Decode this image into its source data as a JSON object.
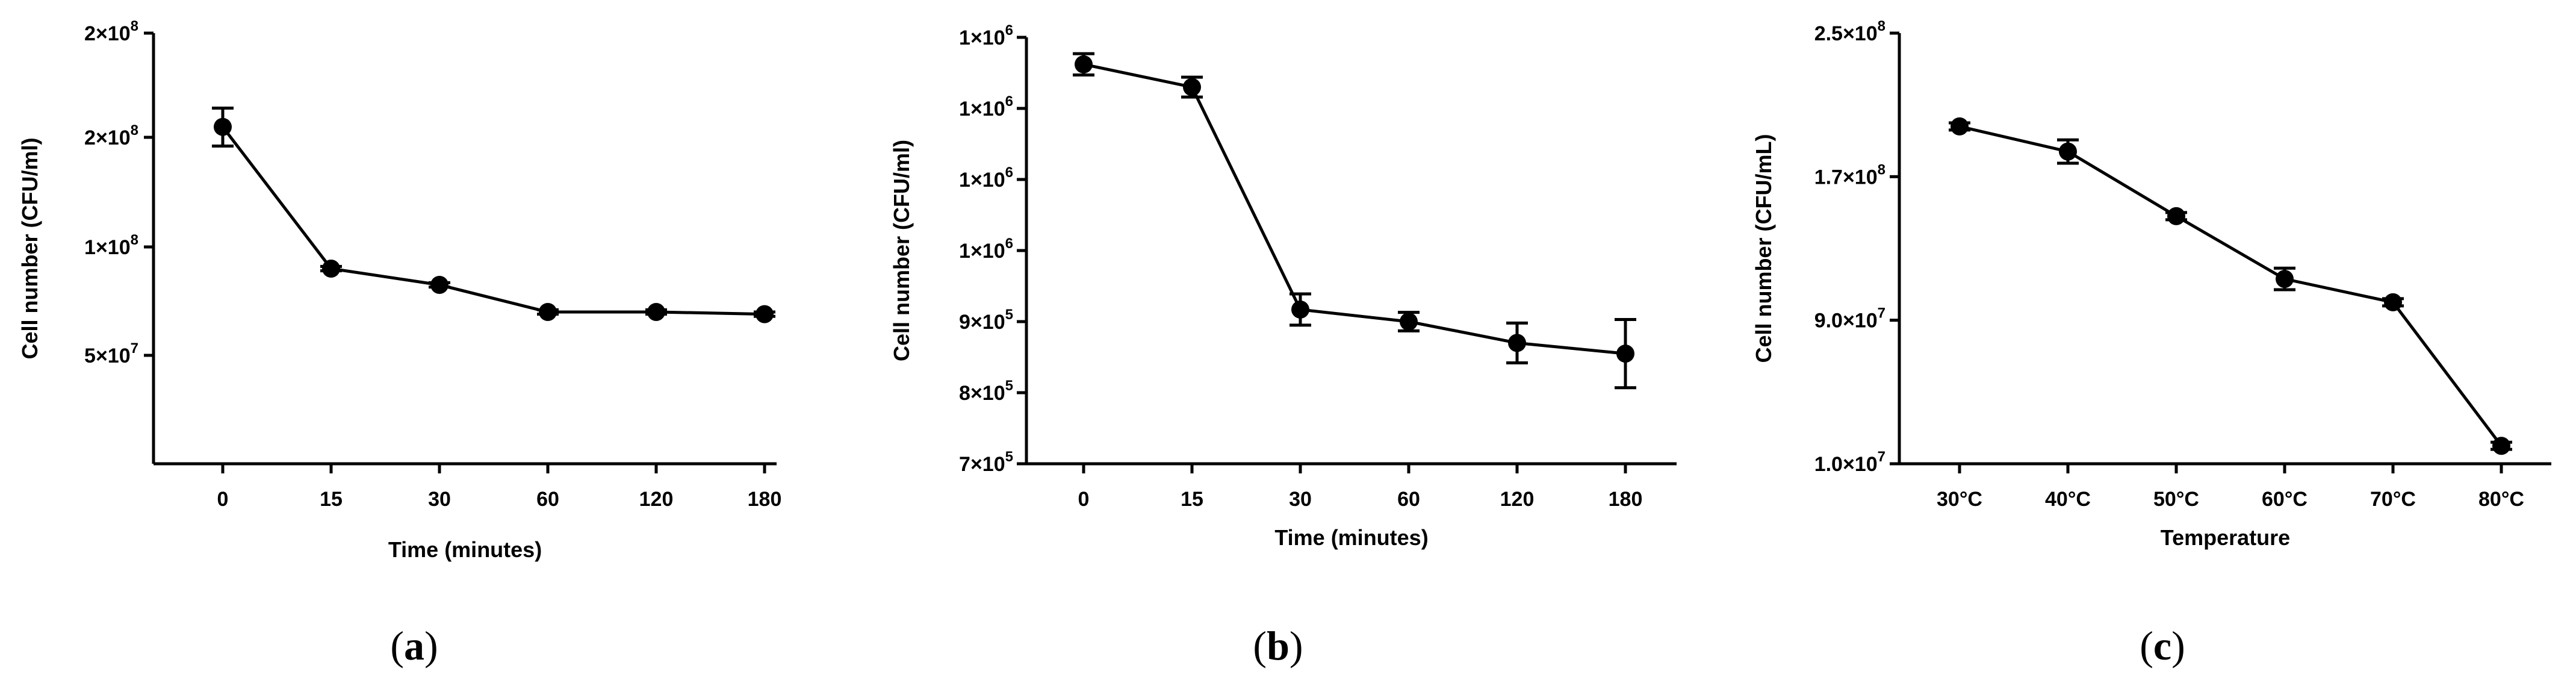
{
  "chart_data": [
    {
      "type": "line",
      "panel_label": "a",
      "xlabel": "Time (minutes)",
      "ylabel": "Cell number (CFU/ml)",
      "categories": [
        "0",
        "15",
        "30",
        "60",
        "120",
        "180"
      ],
      "y_ticks": [
        {
          "value": 50000000,
          "label": "5×10",
          "exp": "7"
        },
        {
          "value": 100000000,
          "label": "1×10",
          "exp": "8"
        },
        {
          "value": 150000000,
          "label": "2×10",
          "exp": "8"
        },
        {
          "value": 200000000,
          "label": "2×10",
          "exp": "8"
        }
      ],
      "ylim": [
        0,
        200000000
      ],
      "series": [
        {
          "name": "series",
          "values": [
            155000000,
            90000000,
            82500000,
            70000000,
            70000000,
            69000000
          ],
          "errors": [
            9000000,
            1000000,
            1000000,
            1000000,
            1000000,
            1000000
          ]
        }
      ]
    },
    {
      "type": "line",
      "panel_label": "b",
      "xlabel": "Time (minutes)",
      "ylabel": "Cell number (CFU/ml)",
      "categories": [
        "0",
        "15",
        "30",
        "60",
        "120",
        "180"
      ],
      "y_ticks": [
        {
          "value": 700000,
          "label": "7×10",
          "exp": "5"
        },
        {
          "value": 800000,
          "label": "8×10",
          "exp": "5"
        },
        {
          "value": 900000,
          "label": "9×10",
          "exp": "5"
        },
        {
          "value": 1000000,
          "label": "1×10",
          "exp": "6"
        },
        {
          "value": 1100000,
          "label": "1×10",
          "exp": "6"
        },
        {
          "value": 1200000,
          "label": "1×10",
          "exp": "6"
        },
        {
          "value": 1300000,
          "label": "1×10",
          "exp": "6"
        }
      ],
      "ylim": [
        700000,
        1300000
      ],
      "series": [
        {
          "name": "series",
          "values": [
            1262000,
            1230000,
            917000,
            900000,
            870000,
            855000
          ],
          "errors": [
            15000,
            14000,
            22000,
            13000,
            28000,
            48000
          ]
        }
      ]
    },
    {
      "type": "line",
      "panel_label": "c",
      "xlabel": "Temperature",
      "ylabel": "Cell number (CFU/mL)",
      "categories": [
        "30°C",
        "40°C",
        "50°C",
        "60°C",
        "70°C",
        "80°C"
      ],
      "y_ticks": [
        {
          "value": 10000000,
          "label": "1.0×10",
          "exp": "7"
        },
        {
          "value": 90000000,
          "label": "9.0×10",
          "exp": "7"
        },
        {
          "value": 170000000,
          "label": "1.7×10",
          "exp": "8"
        },
        {
          "value": 250000000,
          "label": "2.5×10",
          "exp": "8"
        }
      ],
      "ylim": [
        10000000,
        250000000
      ],
      "series": [
        {
          "name": "series",
          "values": [
            198000000,
            184000000,
            148000000,
            113000000,
            100000000,
            20000000
          ],
          "errors": [
            2000000,
            6500000,
            2000000,
            6000000,
            2000000,
            2000000
          ]
        }
      ]
    }
  ]
}
